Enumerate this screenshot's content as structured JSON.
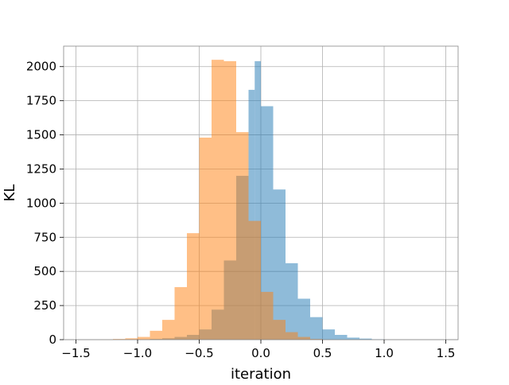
{
  "chart_data": {
    "type": "histogram",
    "title": "",
    "xlabel": "iteration",
    "ylabel": "KL",
    "xlim": [
      -1.6,
      1.6
    ],
    "ylim": [
      0,
      2150
    ],
    "grid": true,
    "x_ticks": [
      -1.5,
      -1.0,
      -0.5,
      0.0,
      0.5,
      1.0,
      1.5
    ],
    "x_tick_labels": [
      "−1.5",
      "−1.0",
      "−0.5",
      "0.0",
      "0.5",
      "1.0",
      "1.5"
    ],
    "y_ticks": [
      0,
      250,
      500,
      750,
      1000,
      1250,
      1500,
      1750,
      2000
    ],
    "y_tick_labels": [
      "0",
      "250",
      "500",
      "750",
      "1000",
      "1250",
      "1500",
      "1750",
      "2000"
    ],
    "series": [
      {
        "color": "#1f77b4",
        "alpha": 0.5,
        "bins": [
          {
            "x0": -1.2,
            "x1": -1.1,
            "count": 0
          },
          {
            "x0": -1.1,
            "x1": -1.0,
            "count": 0
          },
          {
            "x0": -1.0,
            "x1": -0.9,
            "count": 2
          },
          {
            "x0": -0.9,
            "x1": -0.8,
            "count": 5
          },
          {
            "x0": -0.8,
            "x1": -0.7,
            "count": 10
          },
          {
            "x0": -0.7,
            "x1": -0.6,
            "count": 20
          },
          {
            "x0": -0.6,
            "x1": -0.5,
            "count": 35
          },
          {
            "x0": -0.5,
            "x1": -0.4,
            "count": 75
          },
          {
            "x0": -0.4,
            "x1": -0.3,
            "count": 220
          },
          {
            "x0": -0.3,
            "x1": -0.2,
            "count": 580
          },
          {
            "x0": -0.2,
            "x1": -0.1,
            "count": 1200
          },
          {
            "x0": -0.1,
            "x1": -0.1,
            "count": 0
          },
          {
            "x0": -0.1,
            "x1": -0.05,
            "count": 1830
          },
          {
            "x0": -0.05,
            "x1": 0.0,
            "count": 2040
          },
          {
            "x0": 0.0,
            "x1": 0.1,
            "count": 1710
          },
          {
            "x0": 0.1,
            "x1": 0.2,
            "count": 1100
          },
          {
            "x0": 0.2,
            "x1": 0.3,
            "count": 560
          },
          {
            "x0": 0.3,
            "x1": 0.4,
            "count": 300
          },
          {
            "x0": 0.4,
            "x1": 0.5,
            "count": 165
          },
          {
            "x0": 0.5,
            "x1": 0.6,
            "count": 75
          },
          {
            "x0": 0.6,
            "x1": 0.7,
            "count": 35
          },
          {
            "x0": 0.7,
            "x1": 0.8,
            "count": 15
          },
          {
            "x0": 0.8,
            "x1": 0.9,
            "count": 8
          },
          {
            "x0": 0.9,
            "x1": 1.0,
            "count": 3
          }
        ]
      },
      {
        "color": "#ff7f0e",
        "alpha": 0.5,
        "bins": [
          {
            "x0": -1.3,
            "x1": -1.2,
            "count": 1
          },
          {
            "x0": -1.2,
            "x1": -1.1,
            "count": 5
          },
          {
            "x0": -1.1,
            "x1": -1.0,
            "count": 10
          },
          {
            "x0": -1.0,
            "x1": -0.9,
            "count": 20
          },
          {
            "x0": -0.9,
            "x1": -0.8,
            "count": 65
          },
          {
            "x0": -0.8,
            "x1": -0.7,
            "count": 145
          },
          {
            "x0": -0.7,
            "x1": -0.6,
            "count": 385
          },
          {
            "x0": -0.6,
            "x1": -0.5,
            "count": 780
          },
          {
            "x0": -0.5,
            "x1": -0.4,
            "count": 1480
          },
          {
            "x0": -0.4,
            "x1": -0.3,
            "count": 2050
          },
          {
            "x0": -0.3,
            "x1": -0.2,
            "count": 2040
          },
          {
            "x0": -0.2,
            "x1": -0.1,
            "count": 1520
          },
          {
            "x0": -0.1,
            "x1": 0.0,
            "count": 870
          },
          {
            "x0": 0.0,
            "x1": 0.1,
            "count": 350
          },
          {
            "x0": 0.1,
            "x1": 0.2,
            "count": 145
          },
          {
            "x0": 0.2,
            "x1": 0.3,
            "count": 55
          },
          {
            "x0": 0.3,
            "x1": 0.4,
            "count": 20
          },
          {
            "x0": 0.4,
            "x1": 0.5,
            "count": 5
          }
        ]
      }
    ]
  }
}
